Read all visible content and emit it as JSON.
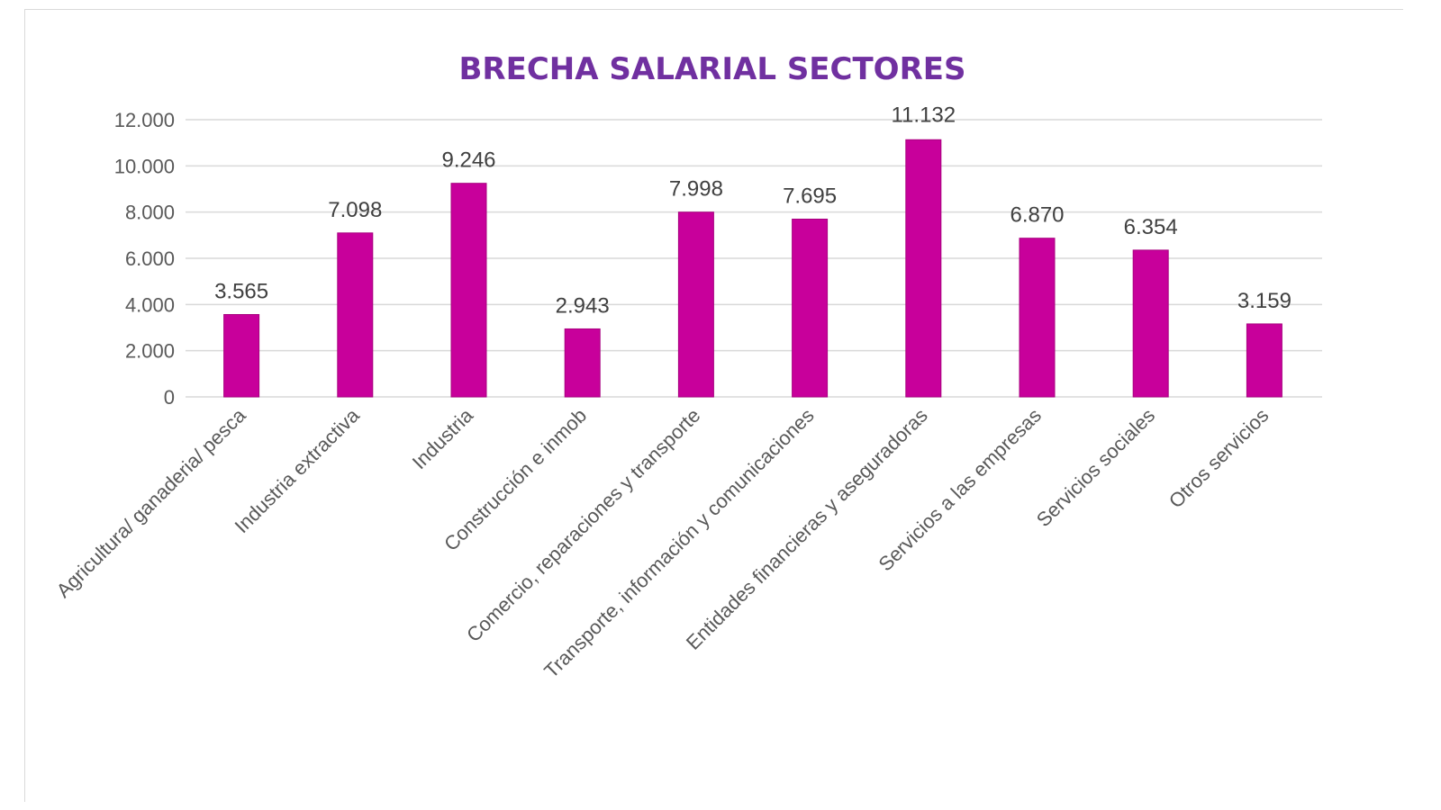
{
  "chart_data": {
    "type": "bar",
    "title": "BRECHA SALARIAL SECTORES",
    "xlabel": "",
    "ylabel": "",
    "ylim": [
      0,
      12000
    ],
    "yticks": [
      0,
      2000,
      4000,
      6000,
      8000,
      10000,
      12000
    ],
    "ytick_labels": [
      "0",
      "2.000",
      "4.000",
      "6.000",
      "8.000",
      "10.000",
      "12.000"
    ],
    "grid": true,
    "legend": "none",
    "bar_color": "#C8009B",
    "title_color": "#7030A0",
    "categories": [
      "Agricultura/ ganaderia/ pesca",
      "Industria extractiva",
      "Industria",
      "Construcción e inmob",
      "Comercio, reparaciones y transporte",
      "Transporte, información y comunicaciones",
      "Entidades financieras y aseguradoras",
      "Servicios a las empresas",
      "Servicios sociales",
      "Otros servicios"
    ],
    "values": [
      3565,
      7098,
      9246,
      2943,
      7998,
      7695,
      11132,
      6870,
      6354,
      3159
    ],
    "data_labels": [
      "3.565",
      "7.098",
      "9.246",
      "2.943",
      "7.998",
      "7.695",
      "11.132",
      "6.870",
      "6.354",
      "3.159"
    ]
  }
}
